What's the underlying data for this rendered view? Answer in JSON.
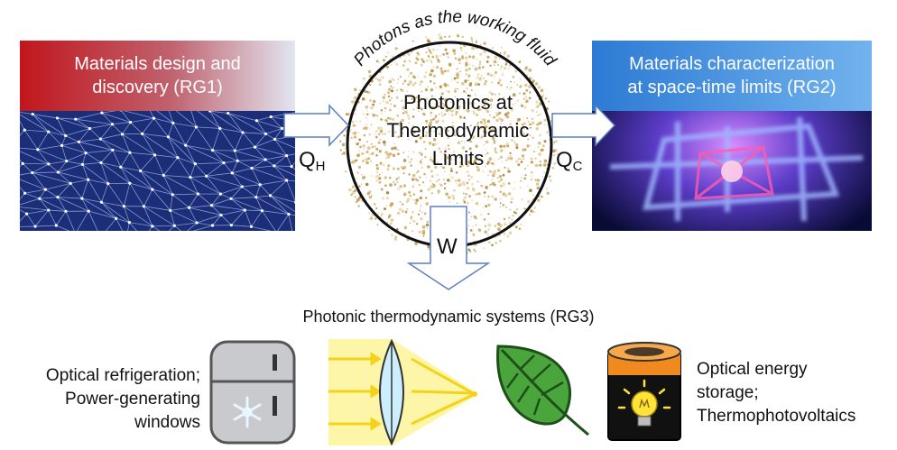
{
  "panel_left": {
    "title": "Materials design and\ndiscovery (RG1)"
  },
  "panel_right": {
    "title": "Materials characterization\nat space-time limits (RG2)"
  },
  "center": {
    "arc_text": "Photons as the working fluid",
    "label": "Photonics at\nThermodynamic\nLimits"
  },
  "flows": {
    "heat_in_main": "Q",
    "heat_in_sub": "H",
    "heat_out_main": "Q",
    "heat_out_sub": "C",
    "work": "W"
  },
  "systems": {
    "title": "Photonic thermodynamic systems (RG3)",
    "left_text": "Optical refrigeration;\nPower-generating\nwindows",
    "right_text": "Optical energy\nstorage;\nThermophotovoltaics"
  },
  "colors": {
    "rg1_red": "#c1161c",
    "rg1_mesh": "#1c2e77",
    "rg2_blue": "#2c7ad4",
    "speckle_gold": "#c9a24a",
    "leaf_green": "#3f9b3a",
    "battery_orange": "#f08a1f",
    "bulb_yellow": "#ffe23a"
  },
  "icons": [
    "mesh-network-icon",
    "crystal-lattice-icon",
    "refrigerator-icon",
    "snowflake-icon",
    "lens-icon",
    "leaf-icon",
    "battery-icon",
    "lightbulb-icon"
  ]
}
